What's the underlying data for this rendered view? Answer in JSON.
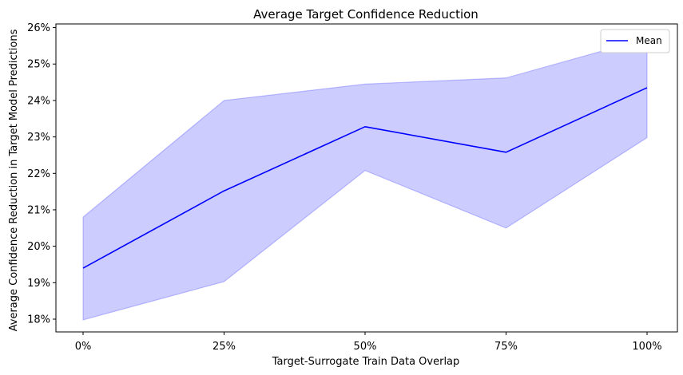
{
  "chart_data": {
    "type": "line",
    "title": "Average Target Confidence Reduction",
    "xlabel": "Target-Surrogate Train Data Overlap",
    "ylabel": "Average Confidence Reduction in Target Model Predictions",
    "categories": [
      "0%",
      "25%",
      "50%",
      "75%",
      "100%"
    ],
    "series": [
      {
        "name": "Mean",
        "values": [
          19.4,
          21.52,
          23.28,
          22.58,
          24.35
        ],
        "color": "#0000ff"
      }
    ],
    "band": {
      "lower": [
        17.98,
        19.03,
        22.08,
        20.5,
        22.98
      ],
      "upper": [
        20.8,
        24.0,
        24.45,
        24.62,
        25.7
      ],
      "fill_color": "#0000ff",
      "fill_opacity": 0.2
    },
    "y_ticks": [
      18,
      19,
      20,
      21,
      22,
      23,
      24,
      25,
      26
    ],
    "y_tick_labels": [
      "18%",
      "19%",
      "20%",
      "21%",
      "22%",
      "23%",
      "24%",
      "25%",
      "26%"
    ],
    "ylim": [
      17.65,
      26.1
    ],
    "grid": false,
    "legend": "upper-right"
  }
}
